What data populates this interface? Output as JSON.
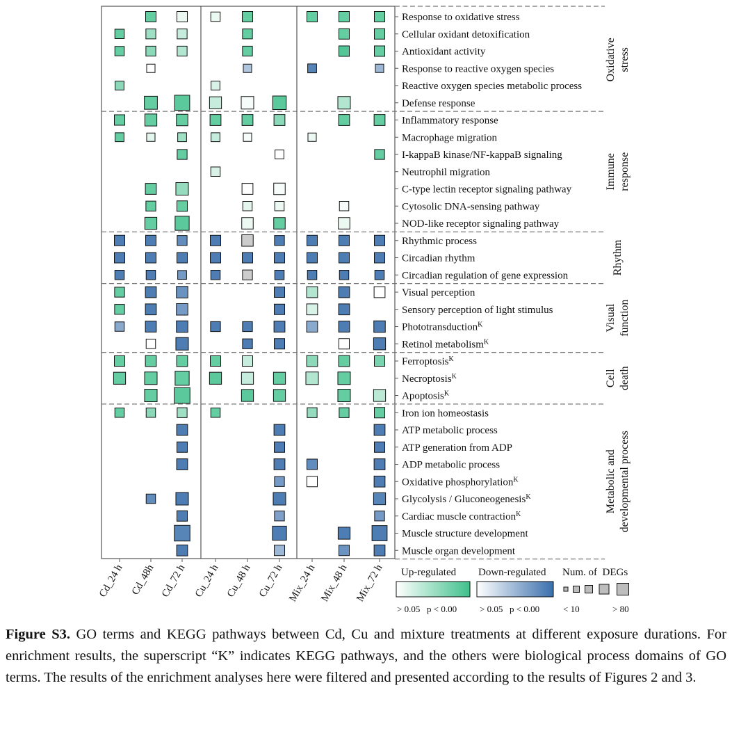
{
  "chart_data": {
    "type": "heatmap",
    "columns": [
      "Cd_24 h",
      "Cd_48h",
      "Cd_72 h",
      "Cu_24 h",
      "Cu_48 h",
      "Cu_72 h",
      "Mix_24 h",
      "Mix_48 h",
      "Mix_72 h"
    ],
    "groups": [
      {
        "label_lines": [
          "Oxidative",
          "stress"
        ],
        "rows": [
          0,
          5
        ]
      },
      {
        "label_lines": [
          "Immune",
          "response"
        ],
        "rows": [
          6,
          12
        ]
      },
      {
        "label_lines": [
          "Rhythm"
        ],
        "rows": [
          13,
          15
        ]
      },
      {
        "label_lines": [
          "Visual",
          "function"
        ],
        "rows": [
          16,
          19
        ]
      },
      {
        "label_lines": [
          "Cell",
          "death"
        ],
        "rows": [
          20,
          22
        ]
      },
      {
        "label_lines": [
          "Metabolic and",
          "developmental process"
        ],
        "rows": [
          23,
          31
        ]
      }
    ],
    "terms": [
      {
        "label": "Response to oxidative stress",
        "sup": ""
      },
      {
        "label": "Cellular oxidant detoxification",
        "sup": ""
      },
      {
        "label": "Antioxidant activity",
        "sup": ""
      },
      {
        "label": "Response to reactive oxygen species",
        "sup": ""
      },
      {
        "label": "Reactive oxygen species metabolic process",
        "sup": ""
      },
      {
        "label": "Defense response",
        "sup": ""
      },
      {
        "label": "Inflammatory response",
        "sup": ""
      },
      {
        "label": "Macrophage migration",
        "sup": ""
      },
      {
        "label": "I-kappaB kinase/NF-kappaB signaling",
        "sup": ""
      },
      {
        "label": "Neutrophil migration",
        "sup": ""
      },
      {
        "label": "C-type lectin receptor signaling pathway",
        "sup": ""
      },
      {
        "label": "Cytosolic DNA-sensing pathway",
        "sup": ""
      },
      {
        "label": "NOD-like receptor signaling pathway",
        "sup": ""
      },
      {
        "label": "Rhythmic process",
        "sup": ""
      },
      {
        "label": "Circadian rhythm",
        "sup": ""
      },
      {
        "label": "Circadian regulation of gene expression",
        "sup": ""
      },
      {
        "label": "Visual perception",
        "sup": ""
      },
      {
        "label": "Sensory perception of light stimulus",
        "sup": ""
      },
      {
        "label": "Phototransduction",
        "sup": "K"
      },
      {
        "label": "Retinol metabolism",
        "sup": "K"
      },
      {
        "label": "Ferroptosis",
        "sup": "K"
      },
      {
        "label": "Necroptosis",
        "sup": "K"
      },
      {
        "label": "Apoptosis",
        "sup": "K"
      },
      {
        "label": "Iron ion homeostasis",
        "sup": ""
      },
      {
        "label": "ATP metabolic process",
        "sup": ""
      },
      {
        "label": "ATP generation from ADP",
        "sup": ""
      },
      {
        "label": "ADP metabolic process",
        "sup": ""
      },
      {
        "label": "Oxidative phosphorylation",
        "sup": "K"
      },
      {
        "label": "Glycolysis / Gluconeogenesis",
        "sup": "K"
      },
      {
        "label": "Cardiac muscle contraction",
        "sup": "K"
      },
      {
        "label": "Muscle structure development",
        "sup": ""
      },
      {
        "label": "Muscle organ development",
        "sup": ""
      }
    ],
    "cells": [
      [
        0,
        1,
        "up",
        0.8,
        0.4
      ],
      [
        0,
        2,
        "up",
        0.1,
        0.4
      ],
      [
        0,
        3,
        "up",
        0.1,
        0.3
      ],
      [
        0,
        4,
        "up",
        0.8,
        0.4
      ],
      [
        0,
        6,
        "up",
        0.8,
        0.4
      ],
      [
        0,
        7,
        "up",
        0.8,
        0.4
      ],
      [
        0,
        8,
        "up",
        0.8,
        0.4
      ],
      [
        1,
        0,
        "up",
        0.8,
        0.3
      ],
      [
        1,
        1,
        "up",
        0.5,
        0.35
      ],
      [
        1,
        2,
        "up",
        0.3,
        0.35
      ],
      [
        1,
        4,
        "up",
        0.8,
        0.35
      ],
      [
        1,
        7,
        "up",
        0.8,
        0.4
      ],
      [
        1,
        8,
        "up",
        0.8,
        0.4
      ],
      [
        2,
        0,
        "up",
        0.8,
        0.3
      ],
      [
        2,
        1,
        "up",
        0.6,
        0.35
      ],
      [
        2,
        2,
        "up",
        0.4,
        0.35
      ],
      [
        2,
        4,
        "up",
        0.8,
        0.35
      ],
      [
        2,
        7,
        "up",
        0.9,
        0.4
      ],
      [
        2,
        8,
        "up",
        0.8,
        0.4
      ],
      [
        3,
        1,
        "up",
        0.0,
        0.2
      ],
      [
        3,
        4,
        "down",
        0.4,
        0.2
      ],
      [
        3,
        6,
        "down",
        0.85,
        0.25
      ],
      [
        3,
        8,
        "down",
        0.5,
        0.2
      ],
      [
        4,
        0,
        "up",
        0.6,
        0.25
      ],
      [
        4,
        3,
        "up",
        0.2,
        0.25
      ],
      [
        5,
        1,
        "up",
        0.8,
        0.65
      ],
      [
        5,
        2,
        "up",
        0.85,
        0.85
      ],
      [
        5,
        3,
        "up",
        0.3,
        0.55
      ],
      [
        5,
        4,
        "up",
        0.05,
        0.6
      ],
      [
        5,
        5,
        "up",
        0.85,
        0.7
      ],
      [
        5,
        7,
        "up",
        0.4,
        0.6
      ],
      [
        6,
        0,
        "up",
        0.8,
        0.4
      ],
      [
        6,
        1,
        "up",
        0.8,
        0.55
      ],
      [
        6,
        2,
        "up",
        0.8,
        0.5
      ],
      [
        6,
        3,
        "up",
        0.8,
        0.45
      ],
      [
        6,
        4,
        "up",
        0.8,
        0.45
      ],
      [
        6,
        5,
        "up",
        0.6,
        0.45
      ],
      [
        6,
        7,
        "up",
        0.8,
        0.45
      ],
      [
        6,
        8,
        "up",
        0.8,
        0.45
      ],
      [
        7,
        0,
        "up",
        0.8,
        0.25
      ],
      [
        7,
        1,
        "up",
        0.15,
        0.2
      ],
      [
        7,
        2,
        "up",
        0.5,
        0.25
      ],
      [
        7,
        3,
        "up",
        0.3,
        0.25
      ],
      [
        7,
        4,
        "up",
        0.05,
        0.2
      ],
      [
        7,
        6,
        "up",
        0.1,
        0.2
      ],
      [
        8,
        2,
        "up",
        0.8,
        0.35
      ],
      [
        8,
        5,
        "up",
        0.0,
        0.25
      ],
      [
        8,
        8,
        "up",
        0.8,
        0.35
      ],
      [
        9,
        3,
        "up",
        0.2,
        0.3
      ],
      [
        10,
        1,
        "up",
        0.8,
        0.45
      ],
      [
        10,
        2,
        "up",
        0.55,
        0.6
      ],
      [
        10,
        4,
        "up",
        0.0,
        0.45
      ],
      [
        10,
        5,
        "up",
        0.05,
        0.5
      ],
      [
        11,
        1,
        "up",
        0.8,
        0.35
      ],
      [
        11,
        2,
        "up",
        0.8,
        0.4
      ],
      [
        11,
        4,
        "up",
        0.15,
        0.3
      ],
      [
        11,
        5,
        "up",
        0.1,
        0.3
      ],
      [
        11,
        7,
        "up",
        0.05,
        0.3
      ],
      [
        12,
        1,
        "up",
        0.8,
        0.55
      ],
      [
        12,
        2,
        "up",
        0.85,
        0.75
      ],
      [
        12,
        4,
        "up",
        0.1,
        0.5
      ],
      [
        12,
        5,
        "up",
        0.8,
        0.5
      ],
      [
        12,
        7,
        "up",
        0.1,
        0.5
      ],
      [
        13,
        0,
        "down",
        0.9,
        0.4
      ],
      [
        13,
        1,
        "down",
        0.9,
        0.4
      ],
      [
        13,
        2,
        "down",
        0.8,
        0.35
      ],
      [
        13,
        3,
        "down",
        0.9,
        0.4
      ],
      [
        13,
        4,
        "gray",
        0.5,
        0.5
      ],
      [
        13,
        5,
        "down",
        0.9,
        0.35
      ],
      [
        13,
        6,
        "down",
        0.9,
        0.4
      ],
      [
        13,
        7,
        "down",
        0.9,
        0.4
      ],
      [
        13,
        8,
        "down",
        0.9,
        0.4
      ],
      [
        14,
        0,
        "down",
        0.9,
        0.4
      ],
      [
        14,
        1,
        "down",
        0.9,
        0.4
      ],
      [
        14,
        2,
        "down",
        0.9,
        0.4
      ],
      [
        14,
        3,
        "down",
        0.9,
        0.4
      ],
      [
        14,
        4,
        "down",
        0.9,
        0.4
      ],
      [
        14,
        5,
        "down",
        0.9,
        0.4
      ],
      [
        14,
        6,
        "down",
        0.9,
        0.4
      ],
      [
        14,
        7,
        "down",
        0.9,
        0.4
      ],
      [
        14,
        8,
        "down",
        0.9,
        0.4
      ],
      [
        15,
        0,
        "down",
        0.9,
        0.3
      ],
      [
        15,
        1,
        "down",
        0.9,
        0.3
      ],
      [
        15,
        2,
        "down",
        0.7,
        0.25
      ],
      [
        15,
        3,
        "down",
        0.9,
        0.3
      ],
      [
        15,
        4,
        "gray",
        0.5,
        0.35
      ],
      [
        15,
        5,
        "down",
        0.9,
        0.3
      ],
      [
        15,
        6,
        "down",
        0.9,
        0.3
      ],
      [
        15,
        7,
        "down",
        0.9,
        0.3
      ],
      [
        15,
        8,
        "down",
        0.9,
        0.3
      ],
      [
        16,
        0,
        "up",
        0.8,
        0.35
      ],
      [
        16,
        1,
        "down",
        0.9,
        0.45
      ],
      [
        16,
        2,
        "down",
        0.75,
        0.5
      ],
      [
        16,
        5,
        "down",
        0.9,
        0.4
      ],
      [
        16,
        6,
        "up",
        0.4,
        0.45
      ],
      [
        16,
        7,
        "down",
        0.9,
        0.45
      ],
      [
        16,
        8,
        "up",
        0.0,
        0.45
      ],
      [
        17,
        0,
        "up",
        0.8,
        0.35
      ],
      [
        17,
        1,
        "down",
        0.9,
        0.45
      ],
      [
        17,
        2,
        "down",
        0.7,
        0.5
      ],
      [
        17,
        5,
        "down",
        0.9,
        0.4
      ],
      [
        17,
        6,
        "up",
        0.2,
        0.45
      ],
      [
        17,
        7,
        "down",
        0.9,
        0.45
      ],
      [
        18,
        0,
        "down",
        0.6,
        0.3
      ],
      [
        18,
        1,
        "down",
        0.9,
        0.45
      ],
      [
        18,
        2,
        "down",
        0.9,
        0.5
      ],
      [
        18,
        3,
        "down",
        0.9,
        0.35
      ],
      [
        18,
        4,
        "down",
        0.9,
        0.35
      ],
      [
        18,
        5,
        "down",
        0.9,
        0.45
      ],
      [
        18,
        6,
        "down",
        0.6,
        0.45
      ],
      [
        18,
        7,
        "down",
        0.9,
        0.45
      ],
      [
        18,
        8,
        "down",
        0.9,
        0.5
      ],
      [
        19,
        1,
        "up",
        0.0,
        0.3
      ],
      [
        19,
        2,
        "down",
        0.9,
        0.6
      ],
      [
        19,
        4,
        "down",
        0.9,
        0.35
      ],
      [
        19,
        5,
        "down",
        0.9,
        0.4
      ],
      [
        19,
        7,
        "up",
        0.0,
        0.4
      ],
      [
        19,
        8,
        "down",
        0.9,
        0.55
      ],
      [
        20,
        0,
        "up",
        0.8,
        0.4
      ],
      [
        20,
        1,
        "up",
        0.8,
        0.45
      ],
      [
        20,
        2,
        "up",
        0.8,
        0.45
      ],
      [
        20,
        3,
        "up",
        0.8,
        0.4
      ],
      [
        20,
        4,
        "up",
        0.3,
        0.4
      ],
      [
        20,
        6,
        "up",
        0.6,
        0.45
      ],
      [
        20,
        7,
        "up",
        0.8,
        0.45
      ],
      [
        20,
        8,
        "up",
        0.7,
        0.4
      ],
      [
        21,
        0,
        "up",
        0.8,
        0.55
      ],
      [
        21,
        1,
        "up",
        0.8,
        0.6
      ],
      [
        21,
        2,
        "up",
        0.8,
        0.75
      ],
      [
        21,
        3,
        "up",
        0.85,
        0.55
      ],
      [
        21,
        4,
        "up",
        0.3,
        0.55
      ],
      [
        21,
        5,
        "up",
        0.8,
        0.55
      ],
      [
        21,
        6,
        "up",
        0.4,
        0.6
      ],
      [
        21,
        7,
        "up",
        0.8,
        0.6
      ],
      [
        22,
        1,
        "up",
        0.8,
        0.6
      ],
      [
        22,
        2,
        "up",
        0.85,
        0.9
      ],
      [
        22,
        4,
        "up",
        0.85,
        0.55
      ],
      [
        22,
        5,
        "up",
        0.8,
        0.55
      ],
      [
        22,
        7,
        "up",
        0.8,
        0.6
      ],
      [
        22,
        8,
        "up",
        0.35,
        0.55
      ],
      [
        23,
        0,
        "up",
        0.8,
        0.3
      ],
      [
        23,
        1,
        "up",
        0.6,
        0.3
      ],
      [
        23,
        2,
        "up",
        0.5,
        0.35
      ],
      [
        23,
        3,
        "up",
        0.8,
        0.3
      ],
      [
        23,
        6,
        "up",
        0.55,
        0.35
      ],
      [
        23,
        7,
        "up",
        0.8,
        0.35
      ],
      [
        23,
        8,
        "up",
        0.8,
        0.4
      ],
      [
        24,
        2,
        "down",
        0.9,
        0.45
      ],
      [
        24,
        5,
        "down",
        0.9,
        0.45
      ],
      [
        24,
        8,
        "down",
        0.9,
        0.45
      ],
      [
        25,
        2,
        "down",
        0.9,
        0.4
      ],
      [
        25,
        5,
        "down",
        0.9,
        0.4
      ],
      [
        25,
        8,
        "down",
        0.9,
        0.4
      ],
      [
        26,
        2,
        "down",
        0.9,
        0.45
      ],
      [
        26,
        5,
        "down",
        0.9,
        0.45
      ],
      [
        26,
        6,
        "down",
        0.8,
        0.4
      ],
      [
        26,
        8,
        "down",
        0.9,
        0.45
      ],
      [
        27,
        5,
        "down",
        0.7,
        0.35
      ],
      [
        27,
        6,
        "up",
        0.0,
        0.4
      ],
      [
        27,
        8,
        "down",
        0.9,
        0.45
      ],
      [
        28,
        1,
        "down",
        0.8,
        0.3
      ],
      [
        28,
        2,
        "down",
        0.9,
        0.6
      ],
      [
        28,
        5,
        "down",
        0.9,
        0.6
      ],
      [
        28,
        8,
        "down",
        0.85,
        0.55
      ],
      [
        29,
        2,
        "down",
        0.9,
        0.4
      ],
      [
        29,
        5,
        "down",
        0.65,
        0.35
      ],
      [
        29,
        8,
        "down",
        0.7,
        0.35
      ],
      [
        30,
        2,
        "down",
        0.85,
        0.9
      ],
      [
        30,
        5,
        "down",
        0.9,
        0.75
      ],
      [
        30,
        7,
        "down",
        0.9,
        0.55
      ],
      [
        30,
        8,
        "down",
        0.9,
        0.85
      ],
      [
        31,
        2,
        "down",
        0.9,
        0.45
      ],
      [
        31,
        5,
        "down",
        0.5,
        0.4
      ],
      [
        31,
        7,
        "down",
        0.75,
        0.4
      ],
      [
        31,
        8,
        "down",
        0.9,
        0.45
      ]
    ],
    "legend": {
      "up_title": "Up-regulated",
      "down_title": "Down-regulated",
      "up_low": "> 0.05",
      "up_high": "p < 0.00",
      "down_low": "> 0.05",
      "down_high": "p < 0.00",
      "size_title": "Num. of  DEGs",
      "size_low": "< 10",
      "size_high": "> 80",
      "up_colors": [
        "#ffffff",
        "#3fc08b"
      ],
      "down_colors": [
        "#ffffff",
        "#3a6fac"
      ]
    }
  },
  "caption": {
    "label": "Figure S3.",
    "text": " GO terms and KEGG pathways between Cd, Cu and mixture treatments at different exposure durations. For enrichment results, the superscript “K” indicates KEGG pathways, and the others were biological process domains of GO terms. The results of the enrichment analyses here were filtered and presented according to the results of Figures 2 and 3."
  }
}
